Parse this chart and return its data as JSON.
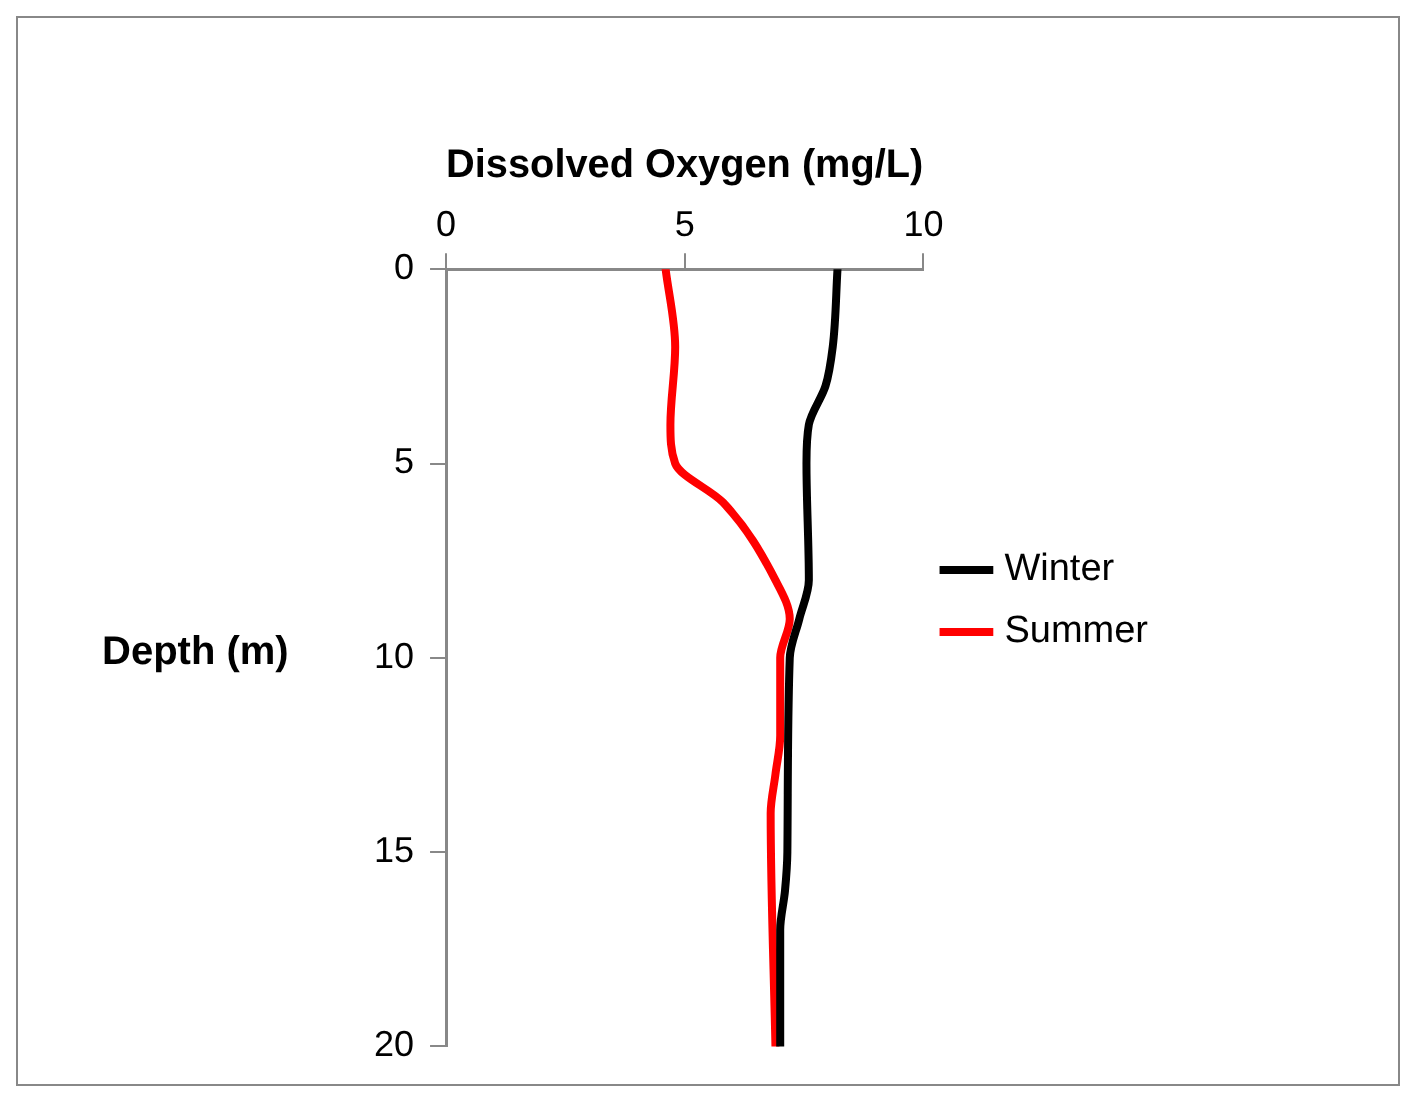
{
  "chart_data": {
    "type": "line",
    "xlabel": "Dissolved Oxygen (mg/L)",
    "ylabel": "Depth (m)",
    "xlim": [
      0,
      10
    ],
    "xticks": [
      0,
      5,
      10
    ],
    "ylim": [
      20,
      0
    ],
    "yticks": [
      0,
      5,
      10,
      15,
      20
    ],
    "legend": "right",
    "marker": "none",
    "line_style": "solid",
    "grid": false,
    "series": [
      {
        "name": "Winter",
        "color": "#000000",
        "x": [
          8.2,
          8.1,
          7.95,
          7.6,
          7.55,
          7.6,
          7.4,
          7.2,
          7.15,
          7.1,
          7.0,
          7.0
        ],
        "values": [
          0,
          2,
          3,
          4,
          5,
          8,
          9,
          10,
          15,
          16,
          17,
          20
        ]
      },
      {
        "name": "Summer",
        "color": "#ff0000",
        "x": [
          4.6,
          4.8,
          4.7,
          4.8,
          5.8,
          6.9,
          7.2,
          7.0,
          7.0,
          6.9,
          6.8,
          6.9
        ],
        "values": [
          0,
          2,
          4,
          5,
          6,
          8,
          9,
          10,
          12,
          13,
          14,
          20
        ]
      }
    ]
  }
}
